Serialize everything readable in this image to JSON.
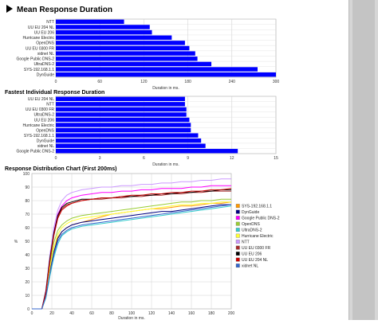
{
  "sections": {
    "mean": {
      "title": "Mean Response Duration"
    },
    "fastest": {
      "title": "Fastest Individual Response Duration"
    },
    "distribution": {
      "title": "Response Distribution Chart (First 200ms)"
    }
  },
  "chart_data": [
    {
      "type": "bar",
      "orientation": "horizontal",
      "title": "Mean Response Duration",
      "xlabel": "Duration in ms.",
      "xlim": [
        0,
        300
      ],
      "xticks": [
        0,
        60,
        120,
        180,
        240,
        300
      ],
      "grid": true,
      "bar_color": "#0000ff",
      "categories": [
        "NTT",
        "UU EU 204 NL",
        "UU EU 206",
        "Hurricane Electric",
        "OpenDNS",
        "UU EU 0300 FR",
        "xidnet NL",
        "Google Public DNS-2",
        "UltraDNS-2",
        "SYS-192.168.1.1",
        "DynGuide"
      ],
      "values": [
        93,
        128,
        131,
        158,
        176,
        182,
        190,
        193,
        212,
        275,
        300
      ]
    },
    {
      "type": "bar",
      "orientation": "horizontal",
      "title": "Fastest Individual Response Duration",
      "xlabel": "Duration in ms.",
      "xlim": [
        0,
        15
      ],
      "xticks": [
        0,
        3,
        6,
        9,
        12,
        15
      ],
      "grid": true,
      "bar_color": "#0000ff",
      "categories": [
        "UU EU 204 NL",
        "NTT",
        "UU EU 0300 FR",
        "UltraDNS-2",
        "UU EU 206",
        "Hurricane Electric",
        "OpenDNS",
        "SYS-192.168.1.1",
        "DynGuide",
        "xidnet NL",
        "Google Public DNS-2"
      ],
      "values": [
        8.8,
        8.8,
        8.9,
        8.9,
        9.1,
        9.2,
        9.2,
        9.7,
        9.9,
        10.2,
        12.4
      ]
    },
    {
      "type": "line",
      "title": "Response Distribution Chart (First 200ms)",
      "xlabel": "Duration in ms.",
      "ylabel": "%",
      "xlim": [
        0,
        200
      ],
      "ylim": [
        0,
        100
      ],
      "xticks": [
        0,
        20,
        40,
        60,
        80,
        100,
        120,
        140,
        160,
        180,
        200
      ],
      "yticks": [
        0,
        10,
        20,
        30,
        40,
        50,
        60,
        70,
        80,
        90,
        100
      ],
      "grid": true,
      "legend": "right",
      "x": [
        0,
        10,
        14,
        18,
        22,
        26,
        30,
        35,
        40,
        45,
        50,
        60,
        70,
        80,
        90,
        100,
        110,
        120,
        130,
        140,
        150,
        160,
        170,
        180,
        190,
        200
      ],
      "series": [
        {
          "name": "SYS-192.168.1.1",
          "color": "#ff9900",
          "values": [
            0,
            0,
            10,
            30,
            45,
            53,
            57,
            60,
            62,
            63,
            64,
            66,
            68,
            70,
            71,
            72,
            73,
            74,
            74,
            75,
            76,
            76,
            77,
            78,
            78,
            79
          ]
        },
        {
          "name": "DynGuide",
          "color": "#000080",
          "values": [
            0,
            0,
            9,
            28,
            42,
            52,
            57,
            60,
            62,
            63,
            64,
            65,
            66,
            67,
            68,
            69,
            70,
            71,
            72,
            72,
            73,
            74,
            75,
            76,
            77,
            77
          ]
        },
        {
          "name": "Google Public DNS-2",
          "color": "#ff00ff",
          "values": [
            0,
            0,
            13,
            38,
            57,
            70,
            76,
            80,
            82,
            83,
            84,
            85,
            86,
            86,
            87,
            87,
            88,
            88,
            89,
            89,
            89,
            90,
            90,
            91,
            91,
            91
          ]
        },
        {
          "name": "OpenDNS",
          "color": "#99cc33",
          "values": [
            0,
            0,
            11,
            33,
            49,
            58,
            62,
            65,
            67,
            68,
            69,
            70,
            71,
            72,
            73,
            74,
            75,
            76,
            77,
            78,
            79,
            79,
            80,
            80,
            81,
            81
          ]
        },
        {
          "name": "UltraDNS-2",
          "color": "#33cccc",
          "values": [
            0,
            0,
            8,
            24,
            38,
            48,
            54,
            57,
            59,
            60,
            61,
            62,
            63,
            64,
            65,
            66,
            67,
            68,
            69,
            70,
            71,
            72,
            73,
            74,
            75,
            76
          ]
        },
        {
          "name": "Hurricane Electric",
          "color": "#ffff33",
          "values": [
            0,
            0,
            10,
            30,
            45,
            55,
            60,
            63,
            65,
            66,
            67,
            68,
            69,
            70,
            71,
            72,
            73,
            74,
            75,
            76,
            77,
            77,
            78,
            78,
            79,
            79
          ]
        },
        {
          "name": "NTT",
          "color": "#cc99ff",
          "values": [
            0,
            0,
            14,
            40,
            60,
            73,
            80,
            84,
            86,
            87,
            88,
            89,
            90,
            90,
            91,
            91,
            92,
            92,
            93,
            93,
            94,
            94,
            95,
            95,
            96,
            96
          ]
        },
        {
          "name": "UU EU 0300 FR",
          "color": "#a52a2a",
          "values": [
            0,
            0,
            12,
            36,
            55,
            68,
            74,
            77,
            78,
            79,
            80,
            81,
            81,
            82,
            82,
            83,
            83,
            84,
            84,
            85,
            85,
            86,
            86,
            87,
            87,
            87
          ]
        },
        {
          "name": "UU EU 206",
          "color": "#000000",
          "values": [
            0,
            0,
            13,
            37,
            56,
            69,
            75,
            78,
            79,
            80,
            81,
            81,
            82,
            82,
            83,
            83,
            84,
            84,
            85,
            85,
            86,
            86,
            87,
            87,
            88,
            88
          ]
        },
        {
          "name": "UU EU 204 NL",
          "color": "#cc0000",
          "values": [
            0,
            0,
            12,
            35,
            54,
            67,
            73,
            76,
            78,
            79,
            80,
            81,
            82,
            82,
            83,
            84,
            84,
            85,
            85,
            86,
            86,
            87,
            87,
            88,
            88,
            89
          ]
        },
        {
          "name": "xidnet NL",
          "color": "#3366cc",
          "values": [
            0,
            0,
            9,
            26,
            40,
            50,
            55,
            58,
            60,
            61,
            62,
            63,
            64,
            65,
            66,
            67,
            68,
            69,
            70,
            71,
            72,
            73,
            74,
            75,
            76,
            77
          ]
        }
      ]
    }
  ]
}
